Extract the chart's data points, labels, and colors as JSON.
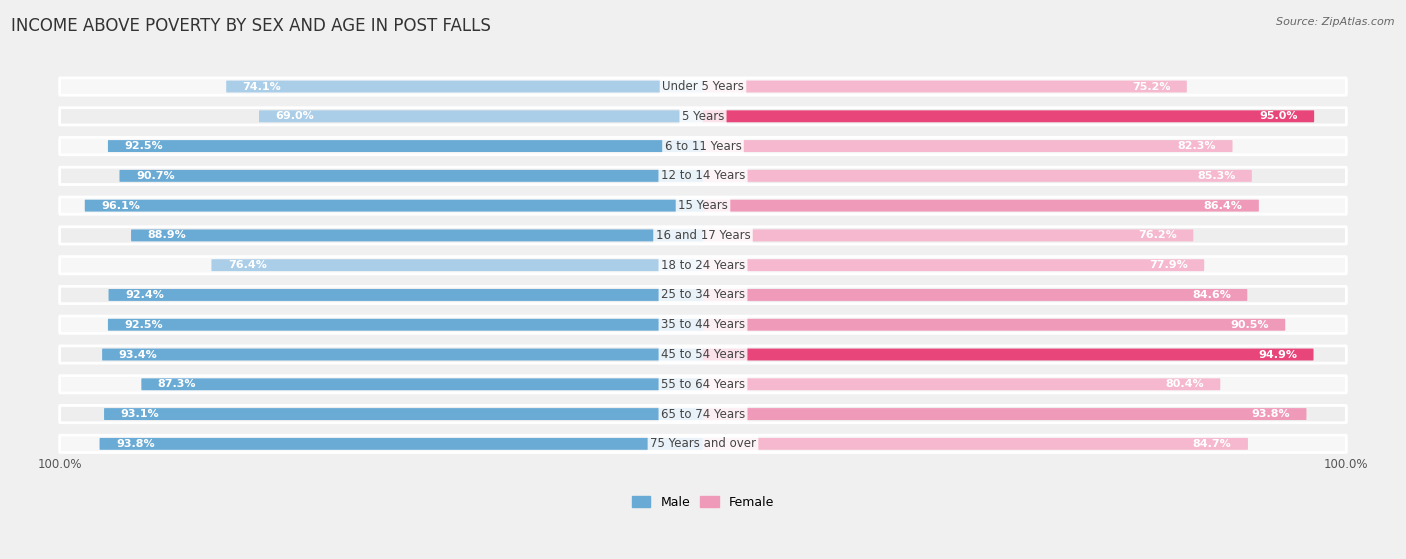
{
  "title": "INCOME ABOVE POVERTY BY SEX AND AGE IN POST FALLS",
  "source": "Source: ZipAtlas.com",
  "categories": [
    "Under 5 Years",
    "5 Years",
    "6 to 11 Years",
    "12 to 14 Years",
    "15 Years",
    "16 and 17 Years",
    "18 to 24 Years",
    "25 to 34 Years",
    "35 to 44 Years",
    "45 to 54 Years",
    "55 to 64 Years",
    "65 to 74 Years",
    "75 Years and over"
  ],
  "male_values": [
    74.1,
    69.0,
    92.5,
    90.7,
    96.1,
    88.9,
    76.4,
    92.4,
    92.5,
    93.4,
    87.3,
    93.1,
    93.8
  ],
  "female_values": [
    75.2,
    95.0,
    82.3,
    85.3,
    86.4,
    76.2,
    77.9,
    84.6,
    90.5,
    94.9,
    80.4,
    93.8,
    84.7
  ],
  "male_colors": [
    "#aacde8",
    "#aacde8",
    "#6aabd6",
    "#6aabd6",
    "#6aabd6",
    "#6aabd6",
    "#aacde8",
    "#6aabd6",
    "#6aabd6",
    "#6aabd6",
    "#6aabd6",
    "#6aabd6",
    "#6aabd6"
  ],
  "female_colors": [
    "#f5b8ce",
    "#e8457a",
    "#f5b8ce",
    "#f5b8ce",
    "#f09aba",
    "#f5b8ce",
    "#f5b8ce",
    "#f09aba",
    "#f09aba",
    "#e8457a",
    "#f5b8ce",
    "#f09aba",
    "#f5b8ce"
  ],
  "background_color": "#f0f0f0",
  "bar_bg_color_odd": "#e2e2e2",
  "bar_bg_color_even": "#d8d8d8",
  "row_bg_odd": "#f7f7f7",
  "row_bg_even": "#eeeeee",
  "xlim": [
    0,
    100
  ],
  "title_fontsize": 12,
  "label_fontsize": 8.5,
  "value_fontsize": 8,
  "legend_fontsize": 9,
  "source_fontsize": 8
}
